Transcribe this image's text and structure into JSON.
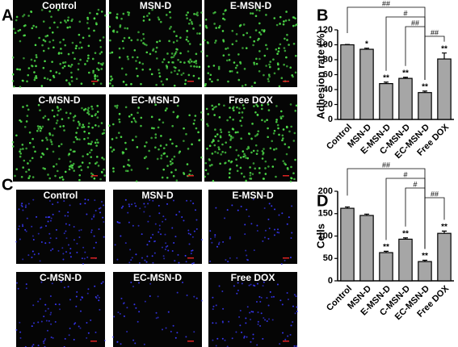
{
  "panel_labels": [
    "A",
    "B",
    "C",
    "D"
  ],
  "images_a": [
    "Control",
    "MSN-D",
    "E-MSN-D",
    "C-MSN-D",
    "EC-MSN-D",
    "Free DOX"
  ],
  "images_c": [
    "Control",
    "MSN-D",
    "E-MSN-D",
    "C-MSN-D",
    "EC-MSN-D",
    "Free DOX"
  ],
  "chart_data": [
    {
      "type": "bar",
      "y_label": "Adhesion rate (%)",
      "categories": [
        "Control",
        "MSN-D",
        "E-MSN-D",
        "C-MSN-D",
        "EC-MSN-D",
        "Free DOX"
      ],
      "values": [
        100,
        94,
        48,
        55,
        36,
        81
      ],
      "errors": [
        0.5,
        1.5,
        2,
        1.5,
        2,
        8
      ],
      "significance": [
        null,
        "*",
        "**",
        "**",
        "**",
        "**"
      ],
      "comparisons": [
        {
          "label": "##",
          "between": [
            "Control",
            "EC-MSN-D"
          ]
        },
        {
          "label": "#",
          "between": [
            "E-MSN-D",
            "EC-MSN-D"
          ]
        },
        {
          "label": "##",
          "between": [
            "C-MSN-D",
            "EC-MSN-D"
          ]
        },
        {
          "label": "##",
          "between": [
            "EC-MSN-D",
            "Free DOX"
          ]
        }
      ],
      "color": "#a6a6a6",
      "ylim": [
        0,
        120
      ],
      "yticks": [
        0,
        20,
        40,
        60,
        80,
        100,
        120
      ]
    },
    {
      "type": "bar",
      "y_label": "Cells",
      "categories": [
        "Control",
        "MSN-D",
        "E-MSN-D",
        "C-MSN-D",
        "EC-MSN-D",
        "Free DOX"
      ],
      "values": [
        162,
        146,
        63,
        93,
        43,
        106
      ],
      "errors": [
        3,
        3,
        3,
        3,
        3,
        5
      ],
      "significance": [
        null,
        null,
        "**",
        "**",
        "**",
        "**"
      ],
      "comparisons": [
        {
          "label": "##",
          "between": [
            "Control",
            "EC-MSN-D"
          ]
        },
        {
          "label": "#",
          "between": [
            "E-MSN-D",
            "EC-MSN-D"
          ]
        },
        {
          "label": "#",
          "between": [
            "C-MSN-D",
            "EC-MSN-D"
          ]
        },
        {
          "label": "##",
          "between": [
            "EC-MSN-D",
            "Free DOX"
          ]
        }
      ],
      "color": "#a6a6a6",
      "ylim": [
        0,
        200
      ],
      "yticks": [
        0,
        50,
        100,
        150,
        200
      ]
    }
  ]
}
